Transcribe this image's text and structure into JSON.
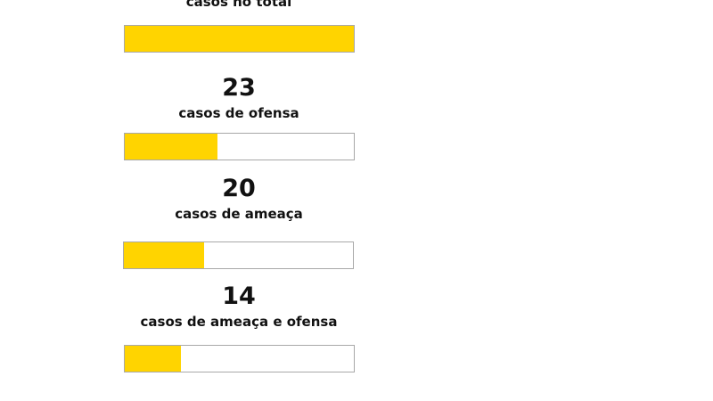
{
  "chart_data": {
    "type": "bar",
    "orientation": "horizontal",
    "max": 57,
    "bar_color": "#ffd400",
    "track_border_color": "#a8a8a8",
    "items": [
      {
        "number": "",
        "caption": "casos no total",
        "value": 57
      },
      {
        "number": "23",
        "caption": "casos de ofensa",
        "value": 23
      },
      {
        "number": "20",
        "caption": "casos de ameaça",
        "value": 20
      },
      {
        "number": "14",
        "caption": "casos de ameaça e ofensa",
        "value": 14
      }
    ]
  }
}
